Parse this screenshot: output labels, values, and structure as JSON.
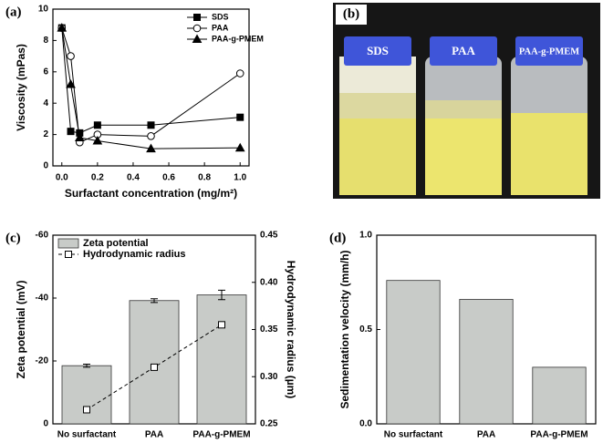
{
  "chart_data": [
    {
      "type": "line",
      "panel_label": "(a)",
      "xlabel": "Surfactant concentration (mg/m²)",
      "ylabel": "Viscosity (mPas)",
      "x": [
        0,
        0.05,
        0.1,
        0.2,
        0.5,
        1.0
      ],
      "series": [
        {
          "name": "SDS",
          "color": "#000000",
          "marker": "square",
          "filled": true,
          "values": [
            8.8,
            2.2,
            2.1,
            2.6,
            2.6,
            3.1
          ]
        },
        {
          "name": "PAA",
          "color": "#000000",
          "marker": "circle",
          "filled": false,
          "values": [
            8.8,
            7.0,
            1.5,
            2.0,
            1.9,
            5.9
          ]
        },
        {
          "name": "PAA-g-PMEM",
          "color": "#000000",
          "marker": "triangle",
          "filled": true,
          "values": [
            8.8,
            5.2,
            1.8,
            1.6,
            1.1,
            1.15
          ]
        }
      ],
      "xlim": [
        -0.05,
        1.05
      ],
      "xticks": [
        {
          "value": 0,
          "label": "0.0"
        },
        0.2,
        0.4,
        0.6,
        0.8,
        {
          "value": 1,
          "label": "1.0"
        }
      ],
      "ylim": [
        0,
        10
      ],
      "yticks": [
        0,
        2,
        4,
        6,
        8,
        10
      ],
      "legend": "upper right"
    },
    {
      "type": "bar",
      "panel_label": "(c)",
      "ylabel": "Zeta potential (mV)",
      "y2label": "Hydrodynamic radius (µm)",
      "categories": [
        "No surfactant",
        "PAA",
        "PAA-g-PMEM"
      ],
      "series": [
        {
          "name": "Zeta potential",
          "type": "bar",
          "color": "#c8cbc8",
          "values": [
            -18.5,
            -39.2,
            -41.0
          ],
          "errors": [
            0.5,
            0.6,
            1.5
          ]
        },
        {
          "name": "Hydrodynamic radius",
          "type": "line",
          "axis": "y2",
          "color": "#000000",
          "marker": "square",
          "filled": false,
          "dashed": true,
          "values": [
            0.265,
            0.31,
            0.355
          ]
        }
      ],
      "ylim": [
        0,
        -60
      ],
      "yticks": [
        0,
        -20,
        -40,
        -60
      ],
      "y2lim": [
        0.25,
        0.45
      ],
      "y2ticks": [
        0.25,
        {
          "value": 0.3,
          "label": "0.30"
        },
        0.35,
        {
          "value": 0.4,
          "label": "0.40"
        },
        0.45
      ],
      "legend": "upper left"
    },
    {
      "type": "bar",
      "panel_label": "(d)",
      "ylabel": "Sedimentation velocity (mm/h)",
      "categories": [
        "No surfactant",
        "PAA",
        "PAA-g-PMEM"
      ],
      "values": [
        0.76,
        0.66,
        0.3
      ],
      "color": "#c8cbc8",
      "ylim": [
        0,
        1.0
      ],
      "yticks": [
        {
          "value": 0,
          "label": "0.0"
        },
        0.5,
        {
          "value": 1,
          "label": "1.0"
        }
      ]
    }
  ],
  "photo": {
    "panel_label": "(b)",
    "jars": [
      "SDS",
      "PAA",
      "PAA-g-PMEM"
    ]
  }
}
